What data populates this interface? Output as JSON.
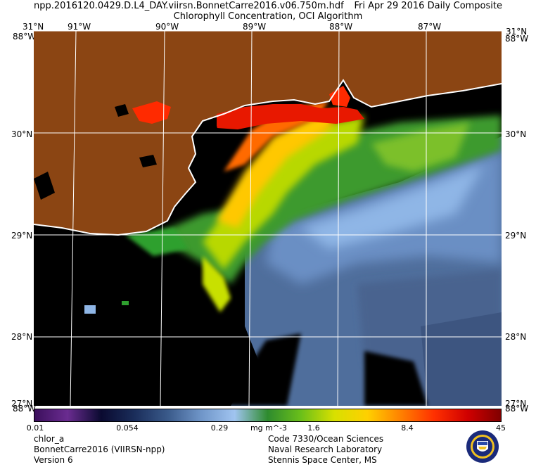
{
  "header": {
    "filename": "npp.2016120.0429.D.L4_DAY.viirsn.BonnetCarre2016.v06.750m.hdf",
    "date_text": "Fri Apr 29 2016 Daily Composite",
    "product": "Chlorophyll Concentration, OCI Algorithm"
  },
  "map": {
    "lon_labels": [
      "91°W",
      "90°W",
      "89°W",
      "88°W",
      "87°W"
    ],
    "lat_labels": [
      "31°N",
      "30°N",
      "29°N",
      "28°N",
      "27°N"
    ],
    "corner_top_left": "31°N",
    "corner_top_left_alt": "88°W",
    "corner_bottom_left": "88°W",
    "corner_top_right": "31°N",
    "corner_top_right_alt": "88°W",
    "corner_bottom_right": "88°W",
    "colors": {
      "land": "#8b4513",
      "no_data": "#000000",
      "coast": "#ffffff",
      "grid": "#ffffff"
    }
  },
  "colorbar": {
    "ticks": [
      "0.01",
      "0.054",
      "0.29",
      "1.6",
      "8.4",
      "45"
    ],
    "units": "mg m^-3",
    "colors": [
      "#3b0f5c",
      "#6a2c90",
      "#0a0a30",
      "#1a2d5a",
      "#3a5a8a",
      "#6f95c8",
      "#a0c4f0",
      "#2e8b2e",
      "#6abf1a",
      "#d8e000",
      "#ffd000",
      "#ff8000",
      "#ff3000",
      "#d00000",
      "#800000"
    ]
  },
  "footer": {
    "left": [
      "chlor_a",
      "BonnetCarre2016 (VIIRSN-npp)",
      "Version 6"
    ],
    "right": [
      "Code 7330/Ocean Sciences",
      "Naval Research Laboratory",
      "Stennis Space Center, MS"
    ],
    "seal_icon": "nrl-seal-icon"
  }
}
